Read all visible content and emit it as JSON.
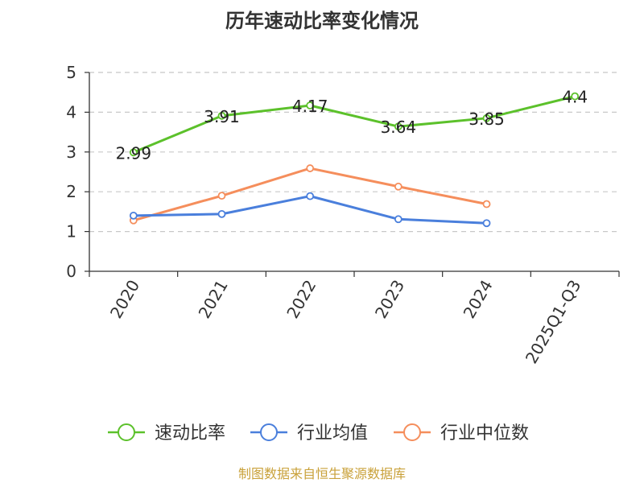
{
  "chart_data": {
    "type": "line",
    "title": "历年速动比率变化情况",
    "categories": [
      "2020",
      "2021",
      "2022",
      "2023",
      "2024",
      "2025Q1-Q3"
    ],
    "ylim": [
      0,
      5
    ],
    "yticks": [
      "0",
      "1",
      "2",
      "3",
      "4",
      "5"
    ],
    "grid": "horizontal-dashed",
    "legend_position": "bottom",
    "series": [
      {
        "name": "速动比率",
        "color": "#5cc12b",
        "values": [
          2.99,
          3.91,
          4.17,
          3.64,
          3.85,
          4.4
        ],
        "labels": [
          "2.99",
          "3.91",
          "4.17",
          "3.64",
          "3.85",
          "4.4"
        ]
      },
      {
        "name": "行业均值",
        "color": "#4a7fdc",
        "values": [
          1.4,
          1.44,
          1.89,
          1.31,
          1.21,
          null
        ]
      },
      {
        "name": "行业中位数",
        "color": "#f58e5c",
        "values": [
          1.28,
          1.9,
          2.59,
          2.13,
          1.69,
          null
        ]
      }
    ]
  },
  "source": {
    "text": "制图数据来自恒生聚源数据库",
    "color": "#c9a13a"
  }
}
